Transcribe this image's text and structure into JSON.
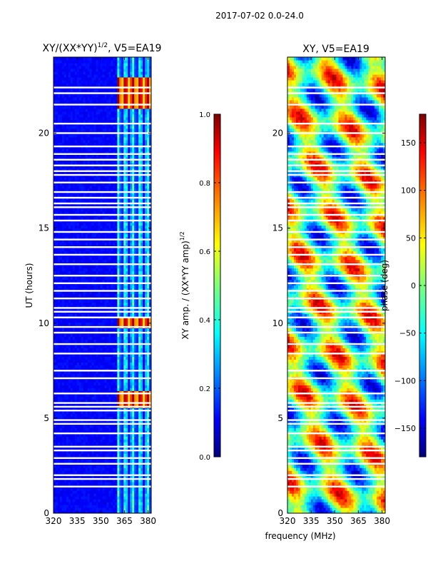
{
  "suptitle": "2017-07-02 0.0-24.0",
  "shared_xlabel": "frequency (MHz)",
  "chart_data": [
    {
      "type": "heatmap",
      "title": "XY/(XX*YY)",
      "title_exp": "1/2",
      "title_tail": ", V5=EA19",
      "xlabel": "",
      "ylabel": "UT (hours)",
      "xlim": [
        320,
        382
      ],
      "ylim": [
        0,
        24
      ],
      "xticks": [
        320,
        335,
        350,
        365,
        380
      ],
      "yticks": [
        0,
        5,
        10,
        15,
        20
      ],
      "colorbar": {
        "label": "XY amp. / (XX*YY amp)",
        "label_exp": "1/2",
        "range": [
          0.0,
          1.0
        ],
        "ticks": [
          "0.0",
          "0.2",
          "0.4",
          "0.6",
          "0.8",
          "1.0"
        ],
        "tick_values": [
          0.0,
          0.2,
          0.4,
          0.6,
          0.8,
          1.0
        ]
      },
      "flagged_ut_hours": [
        1.4,
        1.8,
        2.0,
        2.6,
        2.9,
        3.3,
        3.5,
        4.2,
        4.7,
        4.9,
        5.4,
        5.6,
        5.8,
        6.3,
        7.1,
        7.5,
        8.4,
        8.9,
        9.5,
        9.8,
        10.3,
        10.6,
        10.8,
        11.3,
        11.7,
        12.1,
        12.5,
        13.1,
        13.6,
        14.0,
        14.4,
        14.8,
        15.4,
        15.7,
        16.1,
        16.3,
        16.6,
        16.9,
        17.4,
        17.8,
        18.0,
        18.3,
        18.6,
        18.9,
        19.3,
        20.0,
        20.5,
        21.5,
        22.1,
        22.4
      ],
      "active_band_mhz": [
        361,
        382
      ],
      "strong_ut_hours": [
        5.9,
        6.2,
        10.0,
        10.1,
        21.6,
        22.2,
        22.6
      ]
    },
    {
      "type": "heatmap",
      "title": "XY, V5=EA19",
      "xlabel": "frequency (MHz)",
      "ylabel": "",
      "xlim": [
        320,
        382
      ],
      "ylim": [
        0,
        24
      ],
      "xticks": [
        320,
        335,
        350,
        365,
        380
      ],
      "yticks": [
        0,
        5,
        10,
        15,
        20
      ],
      "colorbar": {
        "label": "phase (deg)",
        "range": [
          -180,
          180
        ],
        "ticks": [
          "−150",
          "−100",
          "−50",
          "0",
          "50",
          "100",
          "150"
        ],
        "tick_values": [
          -150,
          -100,
          -50,
          0,
          50,
          100,
          150
        ]
      },
      "flagged_ut_hours": [
        1.4,
        1.8,
        2.0,
        2.6,
        2.9,
        3.3,
        3.5,
        4.2,
        4.7,
        4.9,
        5.4,
        5.6,
        5.8,
        6.3,
        7.1,
        7.5,
        8.4,
        8.9,
        9.5,
        9.8,
        10.3,
        10.6,
        10.8,
        11.3,
        11.7,
        12.1,
        12.5,
        13.1,
        13.6,
        14.0,
        14.4,
        14.8,
        15.4,
        15.7,
        16.1,
        16.3,
        16.6,
        16.9,
        17.4,
        17.8,
        18.0,
        18.3,
        18.6,
        18.9,
        19.3,
        20.0,
        20.5,
        21.5,
        22.1,
        22.4
      ]
    }
  ]
}
